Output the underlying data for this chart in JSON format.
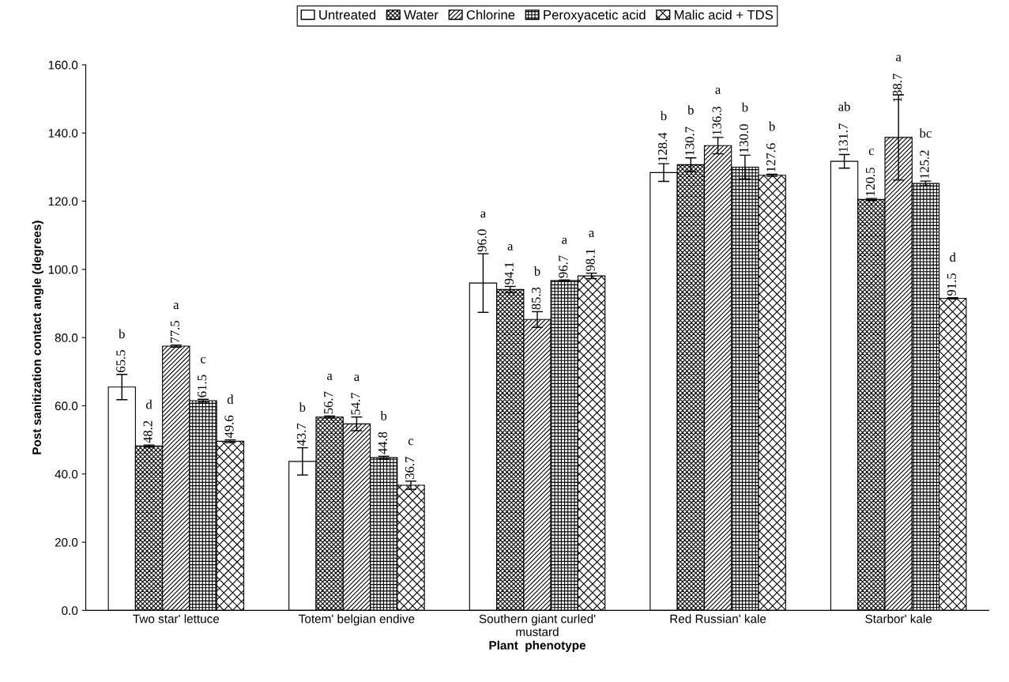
{
  "chart_data": {
    "type": "bar",
    "xlabel": "Plant  phenotype",
    "ylabel": "Post sanitization contact angle (degrees)",
    "categories": [
      "Two star' lettuce",
      "Totem' belgian endive",
      "Southern giant curled'\nmustard",
      "Red Russian' kale",
      "Starbor' kale"
    ],
    "series": [
      {
        "name": "Untreated",
        "color": "#ffffff",
        "values": [
          65.5,
          43.7,
          96.0,
          128.4,
          131.7
        ],
        "errors": [
          3.7,
          4.0,
          8.6,
          2.6,
          2.0
        ],
        "value_labels": [
          "65.5",
          "43.7",
          "96.0",
          "128.4",
          "131.7"
        ]
      },
      {
        "name": "Water",
        "color": "#000000",
        "values": [
          48.2,
          56.7,
          94.1,
          130.7,
          120.5
        ],
        "errors": [
          0.3,
          0.3,
          0.9,
          2.0,
          0.3
        ],
        "value_labels": [
          "48.2",
          "56.7",
          "94.1",
          "130.7",
          "120.5"
        ]
      },
      {
        "name": "Chlorine",
        "color": "#000000",
        "values": [
          77.5,
          54.7,
          85.3,
          136.3,
          138.7
        ],
        "errors": [
          0.3,
          2.0,
          2.3,
          2.4,
          12.5
        ],
        "value_labels": [
          "77.5",
          "54.7",
          "85.3",
          "136.3",
          "138.7"
        ]
      },
      {
        "name": "Peroxyacetic acid",
        "color": "#000000",
        "values": [
          61.5,
          44.8,
          96.7,
          130.0,
          125.2
        ],
        "errors": [
          0.4,
          0.4,
          0.2,
          3.5,
          0.7
        ],
        "value_labels": [
          "61.5",
          "44.8",
          "96.7",
          "130.0",
          "125.2"
        ]
      },
      {
        "name": "Malic acid + TDS",
        "color": "#000000",
        "values": [
          49.6,
          36.7,
          98.1,
          127.6,
          91.5
        ],
        "errors": [
          0.4,
          1.2,
          0.8,
          0.3,
          0.2
        ],
        "value_labels": [
          "49.6",
          "36.7",
          "98.1",
          "127.6",
          "91.5"
        ]
      }
    ],
    "annotations": [
      "b",
      "d",
      "a",
      "c",
      "d",
      "b",
      "a",
      "a",
      "b",
      "c",
      "a",
      "a",
      "b",
      "a",
      "a",
      "b",
      "b",
      "a",
      "b",
      "b",
      "ab",
      "c",
      "a",
      "bc",
      "d"
    ],
    "ylim": [
      0,
      160
    ],
    "yticks": [
      {
        "value": 0,
        "label": "0.0"
      },
      {
        "value": 20,
        "label": "20.0"
      },
      {
        "value": 40,
        "label": "40.0"
      },
      {
        "value": 60,
        "label": "60.0"
      },
      {
        "value": 80,
        "label": "80.0"
      },
      {
        "value": 100,
        "label": "100.0"
      },
      {
        "value": 120,
        "label": "120.0"
      },
      {
        "value": 140,
        "label": "140.0"
      },
      {
        "value": 160,
        "label": "160.0"
      }
    ],
    "grid": false,
    "legend": "top"
  }
}
